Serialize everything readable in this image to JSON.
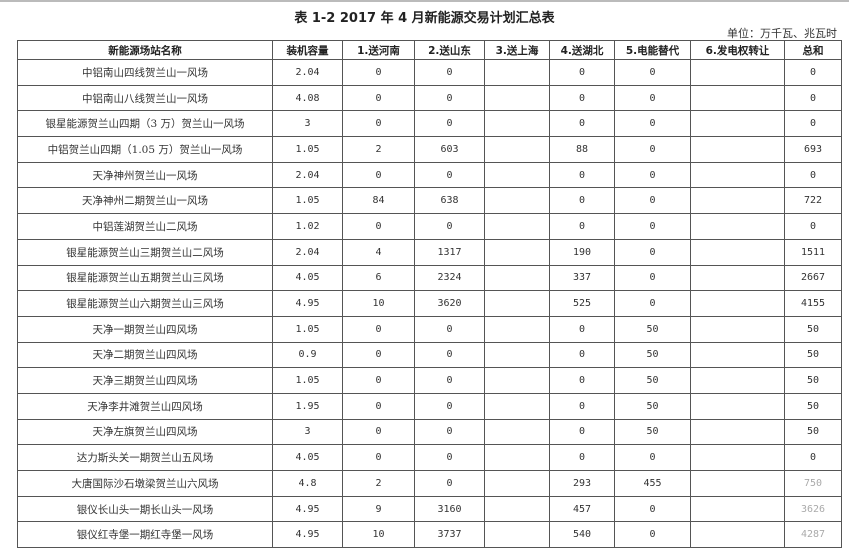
{
  "document": {
    "title": "表 1-2   2017 年 4 月新能源交易计划汇总表",
    "unit": "单位：万千瓦、兆瓦时"
  },
  "table": {
    "headers": [
      "新能源场站名称",
      "装机容量",
      "1.送河南",
      "2.送山东",
      "3.送上海",
      "4.送湖北",
      "5.电能替代",
      "6.发电权转让",
      "总和"
    ],
    "rows": [
      [
        "中铝南山四线贺兰山一风场",
        "2.04",
        "0",
        "0",
        "",
        "0",
        "0",
        "",
        "0"
      ],
      [
        "中铝南山八线贺兰山一风场",
        "4.08",
        "0",
        "0",
        "",
        "0",
        "0",
        "",
        "0"
      ],
      [
        "银星能源贺兰山四期（3 万）贺兰山一风场",
        "3",
        "0",
        "0",
        "",
        "0",
        "0",
        "",
        "0"
      ],
      [
        "中铝贺兰山四期（1.05 万）贺兰山一风场",
        "1.05",
        "2",
        "603",
        "",
        "88",
        "0",
        "",
        "693"
      ],
      [
        "天净神州贺兰山一风场",
        "2.04",
        "0",
        "0",
        "",
        "0",
        "0",
        "",
        "0"
      ],
      [
        "天净神州二期贺兰山一风场",
        "1.05",
        "84",
        "638",
        "",
        "0",
        "0",
        "",
        "722"
      ],
      [
        "中铝莲湖贺兰山二风场",
        "1.02",
        "0",
        "0",
        "",
        "0",
        "0",
        "",
        "0"
      ],
      [
        "银星能源贺兰山三期贺兰山二风场",
        "2.04",
        "4",
        "1317",
        "",
        "190",
        "0",
        "",
        "1511"
      ],
      [
        "银星能源贺兰山五期贺兰山三风场",
        "4.05",
        "6",
        "2324",
        "",
        "337",
        "0",
        "",
        "2667"
      ],
      [
        "银星能源贺兰山六期贺兰山三风场",
        "4.95",
        "10",
        "3620",
        "",
        "525",
        "0",
        "",
        "4155"
      ],
      [
        "天净一期贺兰山四风场",
        "1.05",
        "0",
        "0",
        "",
        "0",
        "50",
        "",
        "50"
      ],
      [
        "天净二期贺兰山四风场",
        "0.9",
        "0",
        "0",
        "",
        "0",
        "50",
        "",
        "50"
      ],
      [
        "天净三期贺兰山四风场",
        "1.05",
        "0",
        "0",
        "",
        "0",
        "50",
        "",
        "50"
      ],
      [
        "天净李井滩贺兰山四风场",
        "1.95",
        "0",
        "0",
        "",
        "0",
        "50",
        "",
        "50"
      ],
      [
        "天净左旗贺兰山四风场",
        "3",
        "0",
        "0",
        "",
        "0",
        "50",
        "",
        "50"
      ],
      [
        "达力斯头关一期贺兰山五风场",
        "4.05",
        "0",
        "0",
        "",
        "0",
        "0",
        "",
        "0"
      ],
      [
        "大唐国际沙石墩梁贺兰山六风场",
        "4.8",
        "2",
        "0",
        "",
        "293",
        "455",
        "",
        "750"
      ],
      [
        "银仪长山头一期长山头一风场",
        "4.95",
        "9",
        "3160",
        "",
        "457",
        "0",
        "",
        "3626"
      ],
      [
        "银仪红寺堡一期红寺堡一风场",
        "4.95",
        "10",
        "3737",
        "",
        "540",
        "0",
        "",
        "4287"
      ]
    ]
  }
}
